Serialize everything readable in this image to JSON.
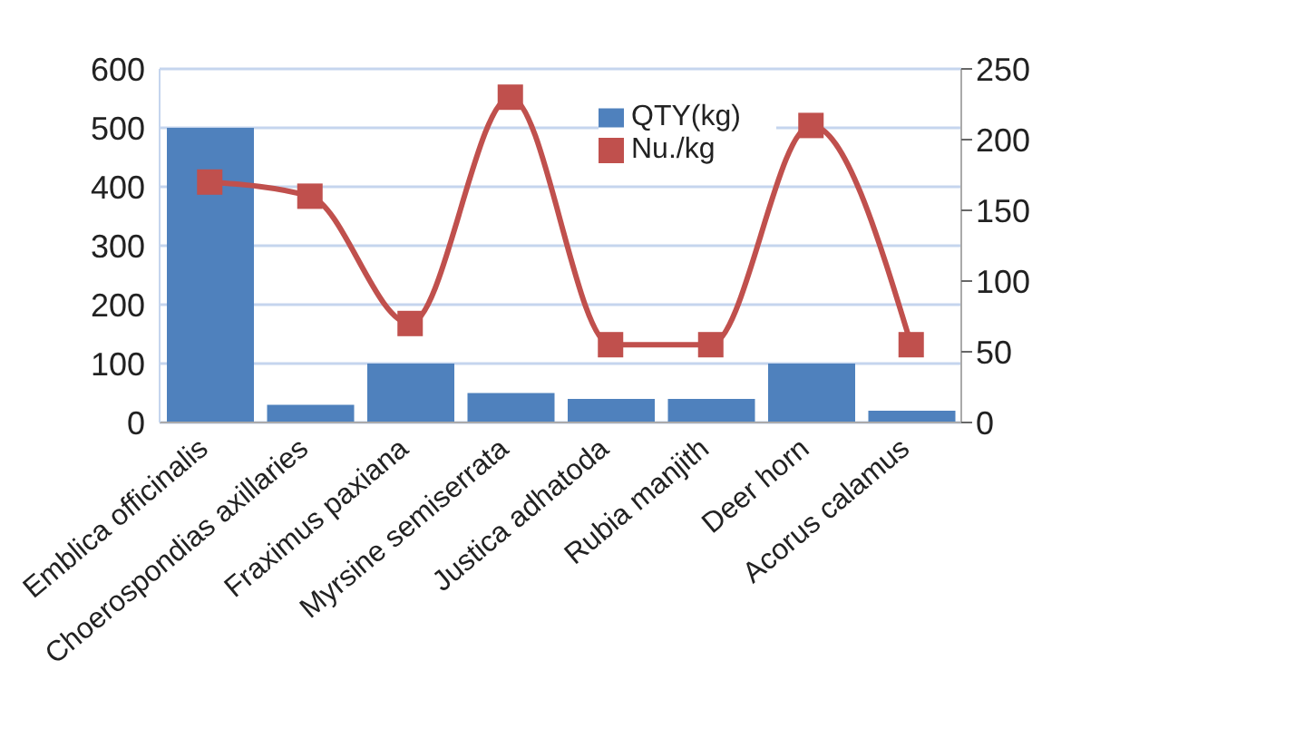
{
  "chart_data": {
    "type": "bar",
    "categories": [
      "Emblica officinalis",
      "Choerospondias axillaries",
      "Fraximus paxiana",
      "Myrsine semiserrata",
      "Justica adhatoda",
      "Rubia manjith",
      "Deer horn",
      "Acorus calamus"
    ],
    "series": [
      {
        "name": "QTY(kg)",
        "color": "#4f81bd",
        "values": [
          500,
          30,
          100,
          50,
          40,
          40,
          100,
          20
        ]
      },
      {
        "name": "Nu./kg",
        "type": "line",
        "axis": "y2",
        "color": "#c0504d",
        "values": [
          170,
          160,
          70,
          230,
          55,
          55,
          210,
          55
        ]
      }
    ],
    "ylim": [
      0,
      600
    ],
    "yticks": [
      0,
      100,
      200,
      300,
      400,
      500,
      600
    ],
    "y2lim": [
      0,
      250
    ],
    "y2ticks": [
      0,
      50,
      100,
      150,
      200,
      250
    ],
    "grid": "y",
    "legend": "top right",
    "marker": "square"
  }
}
